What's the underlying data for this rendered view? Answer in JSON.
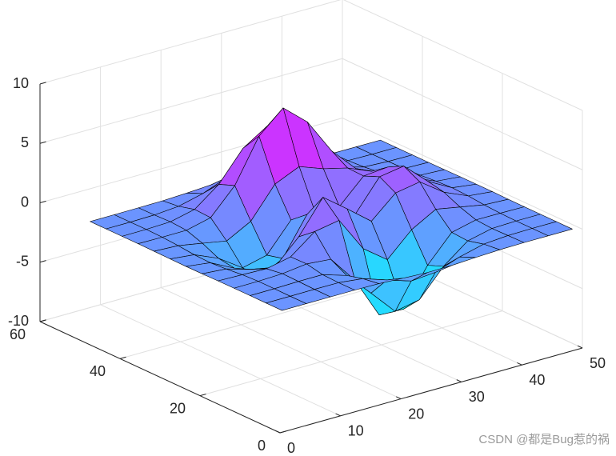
{
  "chart_data": {
    "type": "surface",
    "x": [
      1,
      5,
      9,
      13,
      17,
      21,
      25,
      29,
      33,
      37,
      41,
      45,
      49
    ],
    "y": [
      1,
      5,
      9,
      13,
      17,
      21,
      25,
      29,
      33,
      37,
      41,
      45,
      49
    ],
    "z": [
      [
        0,
        0,
        0,
        0,
        -0.03,
        -0.14,
        -0.24,
        -0.22,
        -0.11,
        -0.03,
        0,
        0,
        0
      ],
      [
        0,
        0,
        0.01,
        0,
        -0.23,
        -0.91,
        -1.57,
        -1.41,
        -0.69,
        -0.18,
        -0.03,
        0,
        0
      ],
      [
        0,
        0.01,
        0.05,
        0.05,
        -0.59,
        -2.64,
        -4.75,
        -4.34,
        -2.1,
        -0.53,
        -0.06,
        0,
        0
      ],
      [
        0,
        0.01,
        0.08,
        0.33,
        0.15,
        -2.19,
        -5.68,
        -5.76,
        -2.64,
        -0.44,
        0.04,
        0.03,
        0
      ],
      [
        -0.01,
        -0.06,
        -0.13,
        0.3,
        1.86,
        2.23,
        -0.72,
        -2.22,
        -0.27,
        0.88,
        0.5,
        0.11,
        0.01
      ],
      [
        -0.03,
        -0.2,
        -0.8,
        -1.21,
        0.8,
        3.55,
        2.0,
        0.39,
        2.2,
        2.56,
        1.12,
        0.24,
        0.03
      ],
      [
        -0.04,
        -0.3,
        -1.33,
        -2.77,
        -1.65,
        1.48,
        0.98,
        0.37,
        2.94,
        3.27,
        1.41,
        0.3,
        0.03
      ],
      [
        -0.03,
        -0.25,
        -1.12,
        -2.49,
        -2.0,
        0.39,
        0.46,
        0.38,
        2.38,
        2.56,
        1.09,
        0.23,
        0.03
      ],
      [
        -0.01,
        -0.11,
        -0.48,
        -0.86,
        0.23,
        2.79,
        3.69,
        2.94,
        2.43,
        1.58,
        0.58,
        0.11,
        0.01
      ],
      [
        0,
        -0.02,
        -0.01,
        0.48,
        2.61,
        6.2,
        8.0,
        6.25,
        3.25,
        1.19,
        0.29,
        0.05,
        0
      ],
      [
        0,
        0.01,
        0.08,
        0.55,
        2.09,
        4.55,
        5.85,
        4.56,
        2.21,
        0.68,
        0.13,
        0.02,
        0
      ],
      [
        0,
        0,
        0.03,
        0.19,
        0.69,
        1.47,
        1.88,
        1.47,
        0.7,
        0.2,
        0.04,
        0,
        0
      ],
      [
        0,
        0,
        0.01,
        0.03,
        0.11,
        0.23,
        0.3,
        0.23,
        0.11,
        0.03,
        0.01,
        0,
        0
      ]
    ],
    "colormap": [
      "#00ffff",
      "#ff00ff"
    ],
    "edge_color": "#000000",
    "xlim": [
      0,
      50
    ],
    "ylim": [
      0,
      60
    ],
    "zlim": [
      -10,
      10
    ],
    "xticks": [
      0,
      10,
      20,
      30,
      40,
      50
    ],
    "yticks": [
      0,
      20,
      40,
      60
    ],
    "zticks": [
      -10,
      -5,
      0,
      5,
      10
    ],
    "grid": true
  },
  "watermark": "CSDN @都是Bug惹的祸"
}
